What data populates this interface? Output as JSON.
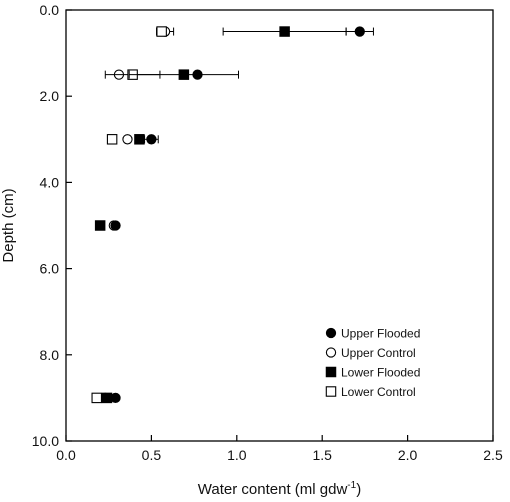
{
  "chart_data": {
    "type": "scatter",
    "title": "",
    "xlabel": "Water content (ml gdw",
    "xlabel_sup": "-1",
    "xlabel_close": ")",
    "ylabel": "Depth (cm)",
    "xlim": [
      0.0,
      2.5
    ],
    "ylim": [
      0.0,
      10.0
    ],
    "y_inverted": true,
    "grid": false,
    "legend_position": "bottom-right",
    "x_ticks": [
      "0.0",
      "0.5",
      "1.0",
      "1.5",
      "2.0",
      "2.5"
    ],
    "y_ticks": [
      "0.0",
      "2.0",
      "4.0",
      "6.0",
      "8.0",
      "10.0"
    ],
    "series": [
      {
        "name": "Upper Flooded",
        "marker": "filled-circle",
        "points": [
          {
            "x": 1.72,
            "y": 0.5,
            "err": 0.08
          },
          {
            "x": 0.77,
            "y": 1.5,
            "err": 0.0
          },
          {
            "x": 0.5,
            "y": 3.0,
            "err": 0.04
          },
          {
            "x": 0.29,
            "y": 5.0,
            "err": 0.0
          },
          {
            "x": 0.29,
            "y": 9.0,
            "err": 0.0
          }
        ]
      },
      {
        "name": "Upper Control",
        "marker": "open-circle",
        "points": [
          {
            "x": 0.58,
            "y": 0.5,
            "err": 0.05
          },
          {
            "x": 0.31,
            "y": 1.5,
            "err": 0.0
          },
          {
            "x": 0.36,
            "y": 3.0,
            "err": 0.0
          },
          {
            "x": 0.28,
            "y": 5.0,
            "err": 0.0
          },
          {
            "x": 0.23,
            "y": 9.0,
            "err": 0.0
          }
        ]
      },
      {
        "name": "Lower Flooded",
        "marker": "filled-square",
        "points": [
          {
            "x": 1.28,
            "y": 0.5,
            "err": 0.36
          },
          {
            "x": 0.69,
            "y": 1.5,
            "err": 0.32
          },
          {
            "x": 0.43,
            "y": 3.0,
            "err": 0.0
          },
          {
            "x": 0.2,
            "y": 5.0,
            "err": 0.0
          },
          {
            "x": 0.24,
            "y": 9.0,
            "err": 0.0
          }
        ]
      },
      {
        "name": "Lower Control",
        "marker": "open-square",
        "points": [
          {
            "x": 0.56,
            "y": 0.5,
            "err": 0.0
          },
          {
            "x": 0.39,
            "y": 1.5,
            "err": 0.16
          },
          {
            "x": 0.27,
            "y": 3.0,
            "err": 0.0
          },
          {
            "x": 0.18,
            "y": 9.0,
            "err": 0.0
          }
        ]
      }
    ]
  }
}
